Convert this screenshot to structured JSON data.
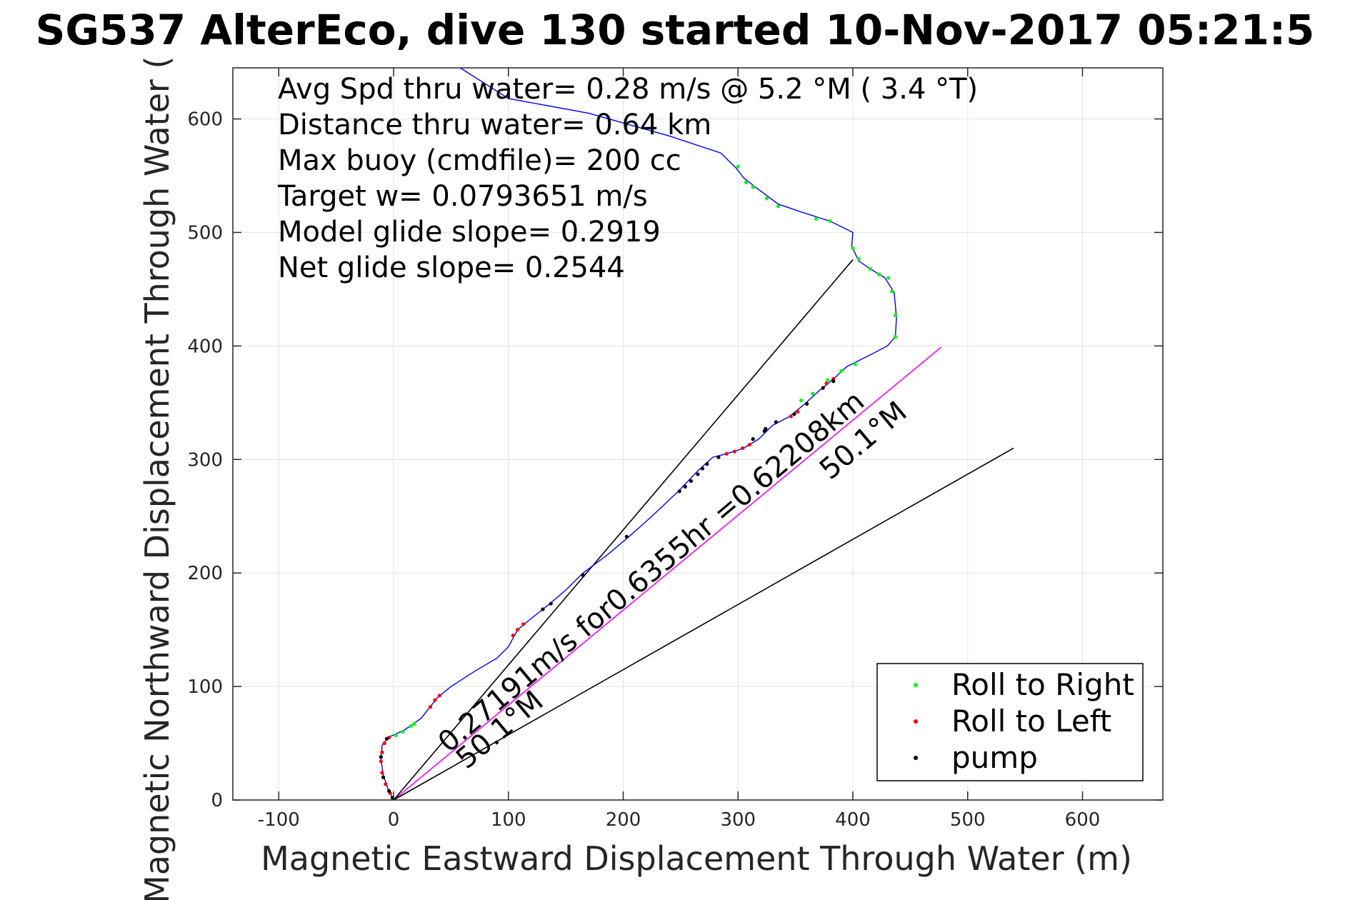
{
  "chart_data": {
    "type": "line",
    "title": "SG537 AlterEco, dive 130 started 10-Nov-2017 05:21:5",
    "xlabel": "Magnetic Eastward Displacement Through Water (m)",
    "ylabel": "Magnetic Northward Displacement Through Water (",
    "xlim": [
      -140,
      670
    ],
    "ylim": [
      0,
      645
    ],
    "x_ticks": [
      -100,
      0,
      100,
      200,
      300,
      400,
      500,
      600
    ],
    "y_ticks": [
      0,
      100,
      200,
      300,
      400,
      500,
      600
    ],
    "grid": true,
    "legend_position": "bottom-right",
    "annotations": [
      "Avg Spd thru water=  0.28 m/s @   5.2 °M (  3.4 °T)",
      "Distance thru water=  0.64 km",
      "Max buoy (cmdfile)= 200 cc",
      "Target w= 0.0793651 m/s",
      "Model glide slope= 0.2919",
      "Net glide slope= 0.2544"
    ],
    "rotated_labels": {
      "speed": "0.27191m/s for0.6355hr =0.62208km",
      "heading_long": "50.1°M",
      "heading_short": "50.1°M"
    },
    "colors": {
      "track": "#0000ff",
      "roll_right": "#00ff00",
      "roll_left": "#ff0000",
      "pump": "#000000",
      "heading_line": "#ff00ff",
      "reference_lines": "#000000"
    },
    "series": [
      {
        "name": "track",
        "points": [
          [
            0,
            0
          ],
          [
            -5,
            10
          ],
          [
            -9,
            22
          ],
          [
            -11,
            36
          ],
          [
            -10,
            48
          ],
          [
            -5,
            55
          ],
          [
            10,
            62
          ],
          [
            24,
            72
          ],
          [
            38,
            90
          ],
          [
            50,
            100
          ],
          [
            70,
            113
          ],
          [
            90,
            125
          ],
          [
            100,
            135
          ],
          [
            108,
            150
          ],
          [
            120,
            160
          ],
          [
            135,
            172
          ],
          [
            150,
            185
          ],
          [
            165,
            200
          ],
          [
            185,
            215
          ],
          [
            205,
            232
          ],
          [
            225,
            250
          ],
          [
            248,
            272
          ],
          [
            265,
            290
          ],
          [
            278,
            302
          ],
          [
            290,
            305
          ],
          [
            305,
            310
          ],
          [
            318,
            318
          ],
          [
            330,
            330
          ],
          [
            345,
            338
          ],
          [
            357,
            348
          ],
          [
            370,
            360
          ],
          [
            382,
            370
          ],
          [
            395,
            382
          ],
          [
            415,
            392
          ],
          [
            430,
            400
          ],
          [
            437,
            408
          ],
          [
            438,
            425
          ],
          [
            436,
            447
          ],
          [
            428,
            460
          ],
          [
            415,
            468
          ],
          [
            405,
            475
          ],
          [
            399,
            488
          ],
          [
            400,
            500
          ],
          [
            380,
            510
          ],
          [
            355,
            518
          ],
          [
            335,
            525
          ],
          [
            315,
            540
          ],
          [
            305,
            548
          ],
          [
            298,
            557
          ],
          [
            285,
            570
          ],
          [
            240,
            585
          ],
          [
            170,
            605
          ],
          [
            100,
            618
          ],
          [
            58,
            645
          ]
        ]
      },
      {
        "name": "Roll to Right",
        "points": [
          [
            2,
            57
          ],
          [
            8,
            60
          ],
          [
            15,
            65
          ],
          [
            18,
            67
          ],
          [
            300,
            558
          ],
          [
            307,
            544
          ],
          [
            313,
            540
          ],
          [
            325,
            530
          ],
          [
            335,
            523
          ],
          [
            368,
            512
          ],
          [
            380,
            510
          ],
          [
            400,
            486
          ],
          [
            405,
            477
          ],
          [
            415,
            468
          ],
          [
            423,
            463
          ],
          [
            431,
            460
          ],
          [
            434,
            448
          ],
          [
            437,
            427
          ],
          [
            437,
            408
          ],
          [
            402,
            384
          ],
          [
            390,
            378
          ],
          [
            378,
            370
          ],
          [
            365,
            358
          ],
          [
            355,
            352
          ]
        ]
      },
      {
        "name": "Roll to Left",
        "points": [
          [
            -4,
            55
          ],
          [
            -8,
            50
          ],
          [
            -10,
            42
          ],
          [
            -11,
            34
          ],
          [
            -10,
            24
          ],
          [
            -7,
            14
          ],
          [
            -3,
            6
          ],
          [
            32,
            82
          ],
          [
            36,
            88
          ],
          [
            40,
            92
          ],
          [
            104,
            145
          ],
          [
            108,
            150
          ],
          [
            113,
            155
          ],
          [
            290,
            305
          ],
          [
            297,
            307
          ],
          [
            304,
            310
          ],
          [
            310,
            313
          ],
          [
            346,
            338
          ],
          [
            352,
            342
          ],
          [
            377,
            367
          ],
          [
            383,
            371
          ]
        ]
      },
      {
        "name": "pump",
        "points": [
          [
            -6,
            54
          ],
          [
            -11,
            38
          ],
          [
            -9,
            20
          ],
          [
            -4,
            8
          ],
          [
            -1,
            2
          ],
          [
            130,
            168
          ],
          [
            137,
            173
          ],
          [
            165,
            198
          ],
          [
            203,
            232
          ],
          [
            249,
            272
          ],
          [
            254,
            276
          ],
          [
            259,
            281
          ],
          [
            265,
            287
          ],
          [
            269,
            292
          ],
          [
            273,
            296
          ],
          [
            283,
            302
          ],
          [
            313,
            318
          ],
          [
            323,
            325
          ],
          [
            324,
            327
          ],
          [
            333,
            333
          ],
          [
            349,
            340
          ],
          [
            360,
            349
          ],
          [
            374,
            363
          ],
          [
            383,
            369
          ]
        ]
      }
    ],
    "reference_lines": [
      {
        "name": "heading_line",
        "from": [
          0,
          0
        ],
        "to": [
          477,
          399
        ]
      },
      {
        "name": "left_reference",
        "from": [
          0,
          0
        ],
        "to": [
          400,
          476
        ]
      },
      {
        "name": "right_reference",
        "from": [
          0,
          0
        ],
        "to": [
          540,
          310
        ]
      }
    ],
    "legend": [
      "Roll to Right",
      "Roll to Left",
      "pump"
    ]
  }
}
